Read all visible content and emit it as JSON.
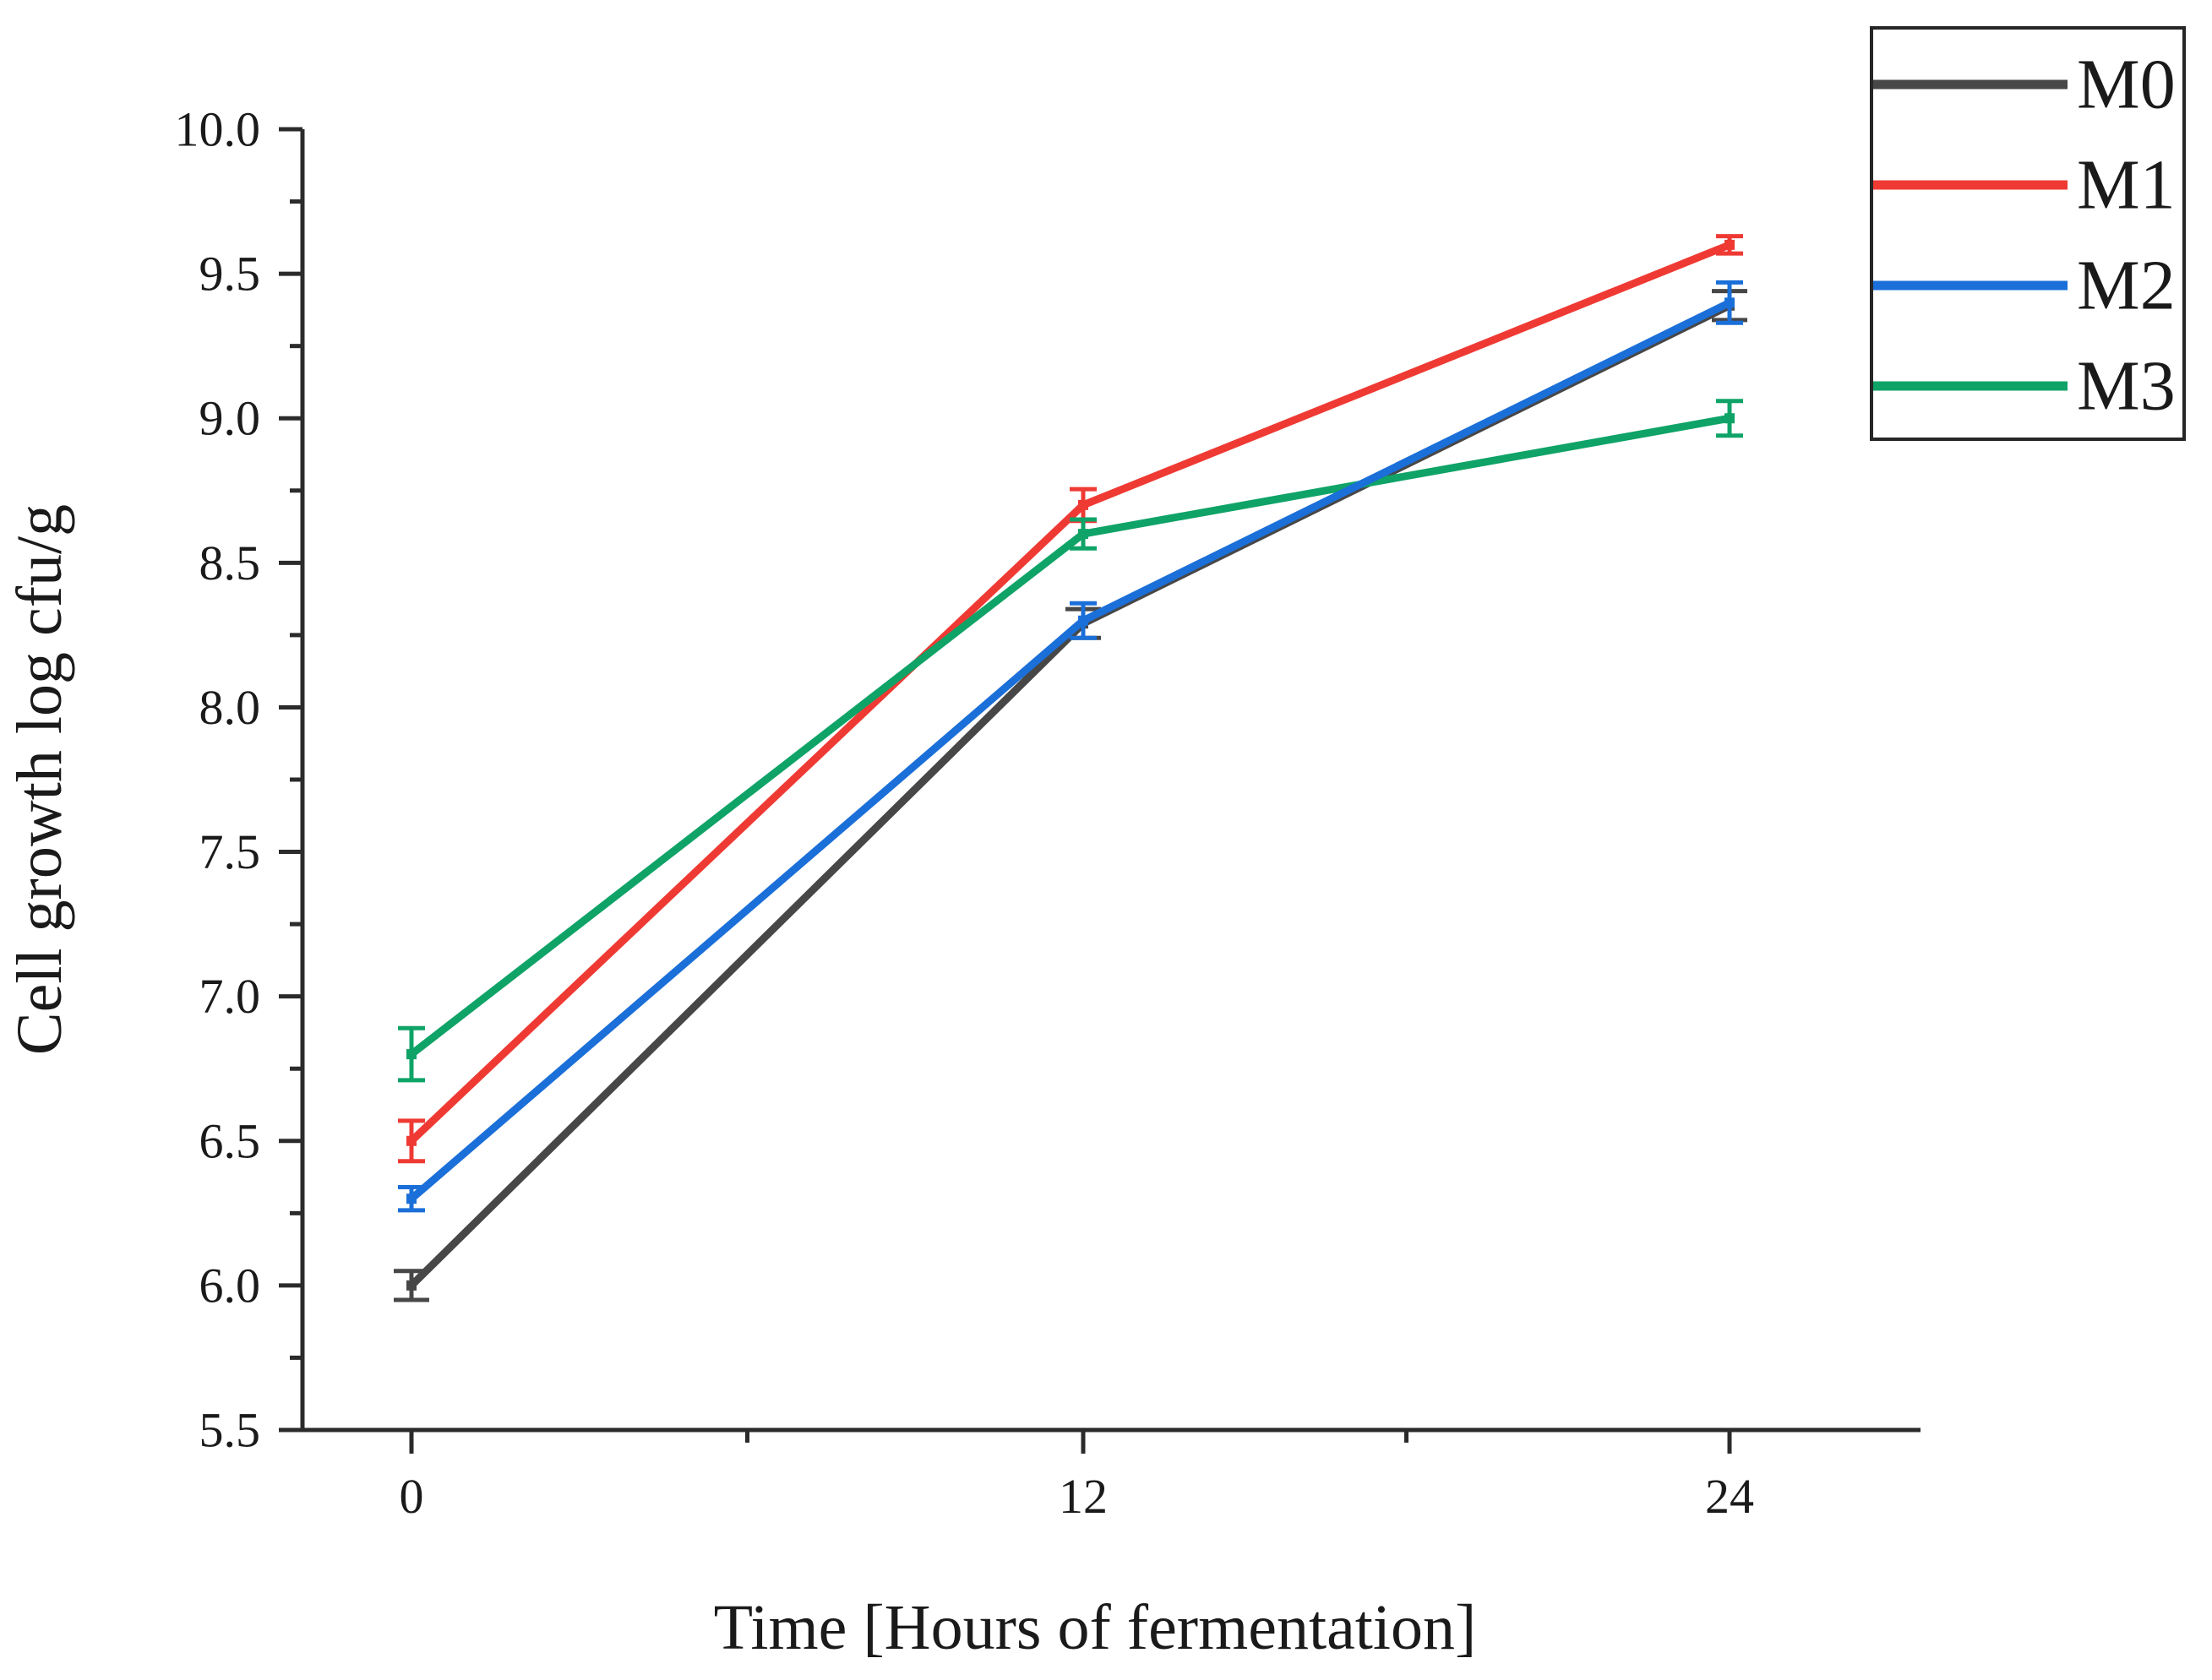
{
  "figure": {
    "background": "#ffffff",
    "axis_color": "#2b2b2b",
    "text_color": "#1a1a1a"
  },
  "chart_data": {
    "type": "line",
    "title": "",
    "xlabel": "Time [Hours of fermentation]",
    "ylabel": "Cell growth log cfu/g",
    "x": [
      0,
      12,
      24
    ],
    "x_tick_labels": [
      "0",
      "12",
      "24"
    ],
    "x_minor_ticks": [
      6,
      18
    ],
    "xlim": [
      -2,
      27.4
    ],
    "ylim": [
      5.5,
      10.0
    ],
    "y_ticks": [
      5.5,
      6.0,
      6.5,
      7.0,
      7.5,
      8.0,
      8.5,
      9.0,
      9.5,
      10.0
    ],
    "y_tick_labels": [
      "5.5",
      "6.0",
      "6.5",
      "7.0",
      "7.5",
      "8.0",
      "8.5",
      "9.0",
      "9.5",
      "10.0"
    ],
    "y_minor_step": 0.25,
    "grid": false,
    "units": "log cfu/g",
    "series": [
      {
        "name": "M0",
        "color": "#474747",
        "values": [
          6.0,
          8.29,
          9.39
        ],
        "errors": [
          0.05,
          0.05,
          0.05
        ]
      },
      {
        "name": "M1",
        "color": "#ef3a34",
        "values": [
          6.5,
          8.7,
          9.6
        ],
        "errors": [
          0.07,
          0.055,
          0.03
        ]
      },
      {
        "name": "M2",
        "color": "#1b6fd8",
        "values": [
          6.3,
          8.3,
          9.4
        ],
        "errors": [
          0.04,
          0.06,
          0.07
        ]
      },
      {
        "name": "M3",
        "color": "#0fa367",
        "values": [
          6.8,
          8.6,
          9.0
        ],
        "errors": [
          0.09,
          0.05,
          0.06
        ]
      }
    ],
    "legend_position": "top-right-outside",
    "legend_order": [
      "M0",
      "M1",
      "M2",
      "M3"
    ]
  }
}
